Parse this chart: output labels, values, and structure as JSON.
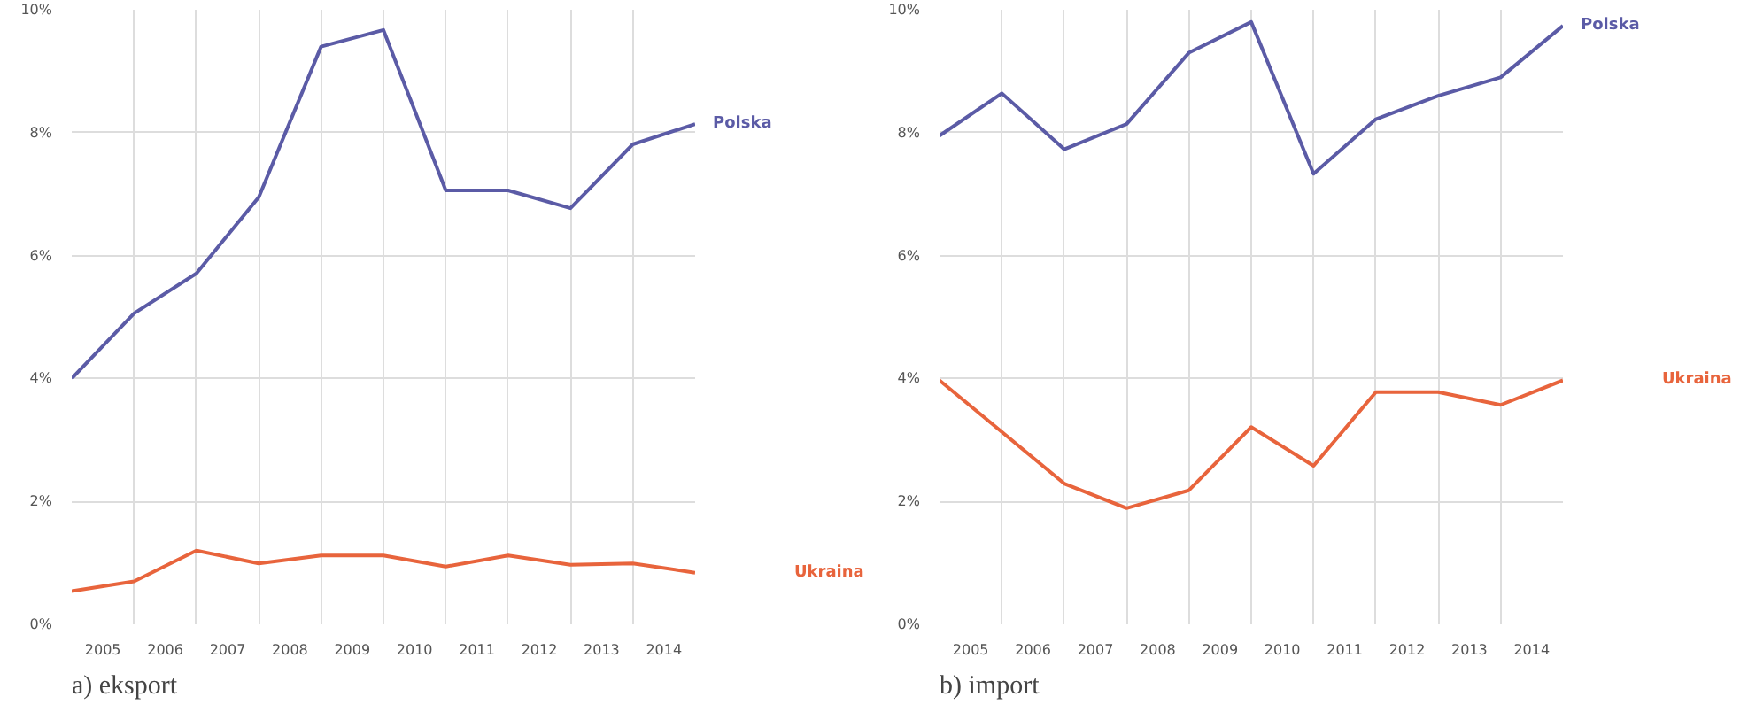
{
  "chart_data": [
    {
      "type": "line",
      "title": "a) eksport",
      "x": [
        2004.5,
        2005.5,
        2006.5,
        2007.5,
        2008.5,
        2009.5,
        2010.5,
        2011.5,
        2012.5,
        2013.5,
        2014.5
      ],
      "xlim": [
        2004.5,
        2014.5
      ],
      "xticks": [
        2005,
        2006,
        2007,
        2008,
        2009,
        2010,
        2011,
        2012,
        2013,
        2014
      ],
      "ylim": [
        0,
        10
      ],
      "yticks": [
        {
          "value": 0,
          "label": "0%"
        },
        {
          "value": 2,
          "label": "2%"
        },
        {
          "value": 4,
          "label": "4%"
        },
        {
          "value": 6,
          "label": "6%"
        },
        {
          "value": 8,
          "label": "8%"
        },
        {
          "value": 10,
          "label": "10%"
        }
      ],
      "grid": true,
      "series": [
        {
          "name": "Polska",
          "color": "#5b5ba6",
          "values": [
            4.0,
            5.06,
            5.71,
            6.95,
            9.4,
            9.67,
            7.06,
            7.06,
            6.77,
            7.81,
            8.14
          ]
        },
        {
          "name": "Ukraina",
          "color": "#e8643c",
          "values": [
            0.54,
            0.7,
            1.2,
            0.99,
            1.12,
            1.12,
            0.94,
            1.12,
            0.97,
            0.99,
            0.84
          ]
        }
      ]
    },
    {
      "type": "line",
      "title": "b) import",
      "x": [
        2004.5,
        2005.5,
        2006.5,
        2007.5,
        2008.5,
        2009.5,
        2010.5,
        2011.5,
        2012.5,
        2013.5,
        2014.5
      ],
      "xlim": [
        2004.5,
        2014.5
      ],
      "xticks": [
        2005,
        2006,
        2007,
        2008,
        2009,
        2010,
        2011,
        2012,
        2013,
        2014
      ],
      "ylim": [
        0,
        10
      ],
      "yticks": [
        {
          "value": 0,
          "label": "0%"
        },
        {
          "value": 2,
          "label": "2%"
        },
        {
          "value": 4,
          "label": "4%"
        },
        {
          "value": 6,
          "label": "6%"
        },
        {
          "value": 8,
          "label": "8%"
        },
        {
          "value": 10,
          "label": "10%"
        }
      ],
      "grid": true,
      "series": [
        {
          "name": "Polska",
          "color": "#5b5ba6",
          "values": [
            7.95,
            8.64,
            7.73,
            8.14,
            9.3,
            9.8,
            7.33,
            8.22,
            8.6,
            8.9,
            9.74
          ]
        },
        {
          "name": "Ukraina",
          "color": "#e8643c",
          "values": [
            3.97,
            3.13,
            2.29,
            1.89,
            2.18,
            3.21,
            2.58,
            3.78,
            3.78,
            3.57,
            3.97
          ]
        }
      ]
    }
  ]
}
